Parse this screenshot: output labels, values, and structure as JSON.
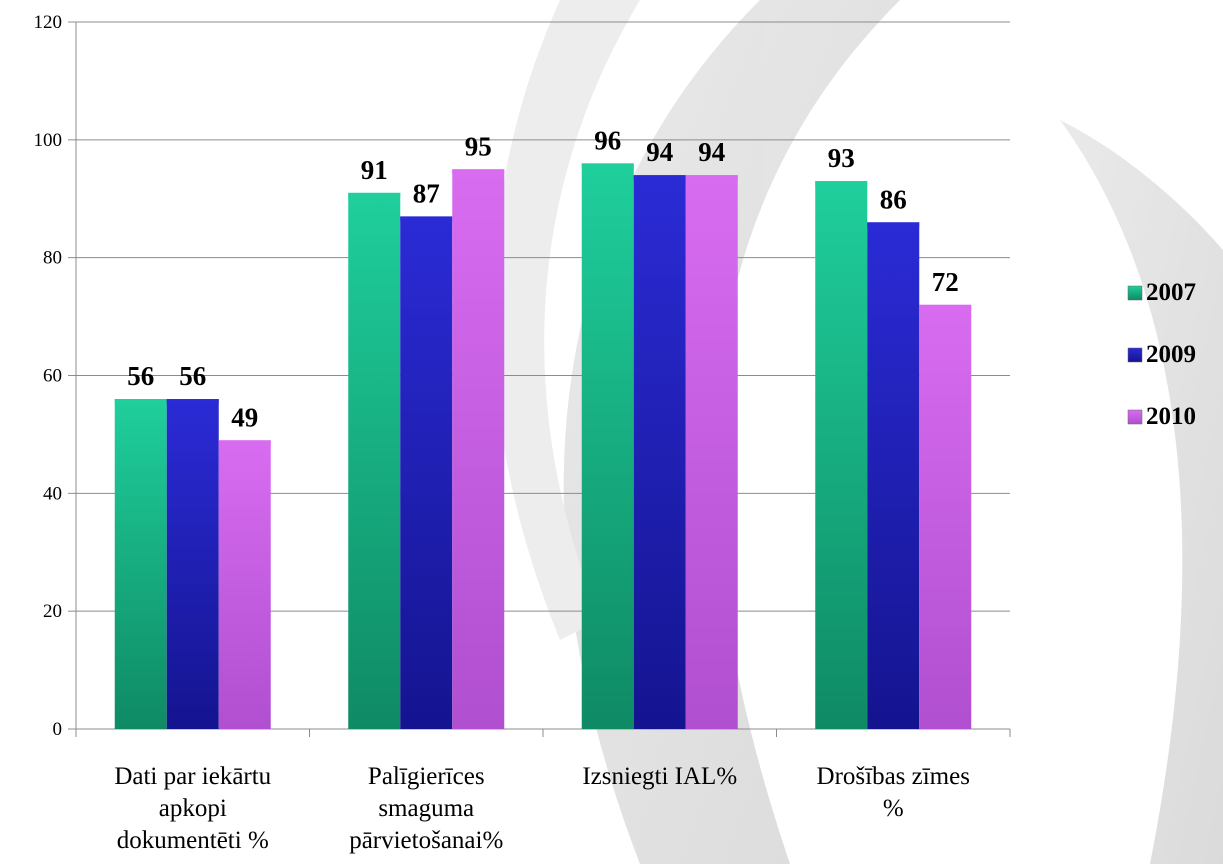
{
  "chart_data": {
    "type": "bar",
    "categories": [
      [
        "Dati par iekārtu",
        "apkopi",
        "dokumentēti %"
      ],
      [
        "Palīgierīces",
        "smaguma",
        "pārvietošanai%"
      ],
      [
        "Izsniegti IAL%"
      ],
      [
        "Drošības zīmes",
        "%"
      ]
    ],
    "series": [
      {
        "name": "2007",
        "values": [
          56,
          91,
          96,
          93
        ],
        "color": "#1fcf9c",
        "color_dark": "#0f8a64"
      },
      {
        "name": "2009",
        "values": [
          56,
          87,
          94,
          86
        ],
        "color": "#2b2bd6",
        "color_dark": "#141490"
      },
      {
        "name": "2010",
        "values": [
          49,
          95,
          94,
          72
        ],
        "color": "#d86cf0",
        "color_dark": "#b04fd0"
      }
    ],
    "ylim": [
      0,
      120
    ],
    "yticks": [
      0,
      20,
      40,
      60,
      80,
      100,
      120
    ],
    "grid": true,
    "legend_position": "right",
    "data_labels": true
  }
}
